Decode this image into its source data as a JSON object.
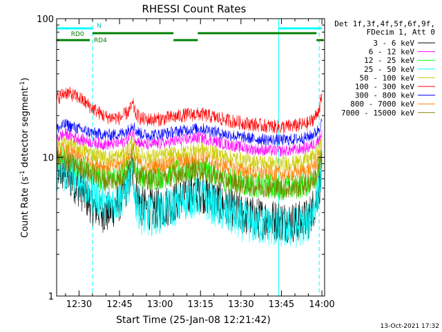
{
  "chart_data": {
    "type": "line",
    "title": "RHESSI Count Rates",
    "xlabel": "Start Time (25-Jan-08 12:21:42)",
    "ylabel": "Count Rate (s",
    "ylabel_sup": "-1",
    "ylabel_rest": " detector segment",
    "ylabel_close": ")",
    "y_scale": "log",
    "ylim": [
      1,
      100
    ],
    "xlim": [
      "12:21:42",
      "14:01:00"
    ],
    "x_ticks": [
      "12:30",
      "12:45",
      "13:00",
      "13:15",
      "13:30",
      "13:45",
      "14:00"
    ],
    "x_tick_minutes": [
      750,
      765,
      780,
      795,
      810,
      825,
      840
    ],
    "y_ticks": [
      "1",
      "10",
      "100"
    ],
    "timestamp": "13-Oct-2021 17:32",
    "legend_header": [
      "Det 1f,3f,4f,5f,6f,9f,",
      "FDecim 1, Att 0"
    ],
    "series": [
      {
        "name": "3 - 6 keV",
        "color": "#000000",
        "x": [
          741.7,
          745,
          750,
          755,
          760,
          765,
          768,
          770,
          771,
          773,
          775,
          780,
          785,
          790,
          795,
          800,
          805,
          810,
          815,
          820,
          825,
          830,
          835,
          838,
          840
        ],
        "y": [
          8.3,
          7.6,
          6.1,
          4.5,
          3.9,
          4.8,
          6.4,
          7.9,
          5.6,
          4.5,
          4.2,
          4.3,
          4.7,
          5.4,
          5.7,
          5.0,
          4.3,
          3.9,
          3.7,
          3.6,
          3.5,
          3.4,
          3.6,
          5.0,
          7.8
        ]
      },
      {
        "name": "6 - 12 keV",
        "color": "#ff00ff",
        "x": [
          741.7,
          745,
          750,
          755,
          760,
          765,
          768,
          770,
          771,
          773,
          775,
          780,
          785,
          790,
          795,
          800,
          805,
          810,
          815,
          820,
          825,
          830,
          835,
          838,
          840
        ],
        "y": [
          13.8,
          14.8,
          13.6,
          12.8,
          12.4,
          12.6,
          13.6,
          15.2,
          13.5,
          12.6,
          12.3,
          12.6,
          13.0,
          13.5,
          13.9,
          13.1,
          12.4,
          11.8,
          11.4,
          11.2,
          11.1,
          11.3,
          11.8,
          12.8,
          15.0
        ]
      },
      {
        "name": "12 - 25 keV",
        "color": "#00ff00",
        "x": [
          741.7,
          745,
          750,
          755,
          760,
          765,
          768,
          770,
          771,
          773,
          775,
          780,
          785,
          790,
          795,
          800,
          805,
          810,
          815,
          820,
          825,
          830,
          835,
          838,
          840
        ],
        "y": [
          10.1,
          9.7,
          8.7,
          7.6,
          6.9,
          7.2,
          8.4,
          10.2,
          8.3,
          7.4,
          7.1,
          7.3,
          7.6,
          8.1,
          8.3,
          7.6,
          6.9,
          6.5,
          6.3,
          6.2,
          6.1,
          6.1,
          6.5,
          7.5,
          10.0
        ]
      },
      {
        "name": "25 - 50 keV",
        "color": "#00ffff",
        "x": [
          741.7,
          745,
          750,
          755,
          760,
          765,
          768,
          770,
          771,
          773,
          775,
          780,
          785,
          790,
          795,
          800,
          805,
          810,
          815,
          820,
          825,
          830,
          835,
          838,
          840
        ],
        "y": [
          8.0,
          7.7,
          6.8,
          5.5,
          4.6,
          4.9,
          6.2,
          7.7,
          4.9,
          3.9,
          3.7,
          4.0,
          4.4,
          5.0,
          5.2,
          4.5,
          3.9,
          3.5,
          3.3,
          3.2,
          3.1,
          3.1,
          3.4,
          4.9,
          8.2
        ]
      },
      {
        "name": "50 - 100 keV",
        "color": "#cccc00",
        "x": [
          741.7,
          745,
          750,
          755,
          760,
          765,
          768,
          770,
          771,
          773,
          775,
          780,
          785,
          790,
          795,
          800,
          805,
          810,
          815,
          820,
          825,
          830,
          835,
          838,
          840
        ],
        "y": [
          12.4,
          12.9,
          11.8,
          10.6,
          10.0,
          10.2,
          11.4,
          13.2,
          11.2,
          10.4,
          10.1,
          10.3,
          10.6,
          11.1,
          11.5,
          10.8,
          10.1,
          9.6,
          9.3,
          9.1,
          9.0,
          9.2,
          9.6,
          10.7,
          13.2
        ]
      },
      {
        "name": "100 - 300 keV",
        "color": "#ff0000",
        "x": [
          741.7,
          745,
          750,
          755,
          760,
          765,
          768,
          770,
          771,
          773,
          775,
          780,
          785,
          790,
          795,
          800,
          805,
          810,
          815,
          820,
          825,
          830,
          835,
          838,
          840
        ],
        "y": [
          26.5,
          29.5,
          27.0,
          22.5,
          19.5,
          19.2,
          21.0,
          24.0,
          20.5,
          19.0,
          18.7,
          18.8,
          19.5,
          20.3,
          20.5,
          19.5,
          18.5,
          17.8,
          17.2,
          16.8,
          16.5,
          16.9,
          17.5,
          20.0,
          26.5
        ]
      },
      {
        "name": "300 - 800 keV",
        "color": "#0000ff",
        "x": [
          741.7,
          745,
          750,
          755,
          760,
          765,
          768,
          770,
          771,
          773,
          775,
          780,
          785,
          790,
          795,
          800,
          805,
          810,
          815,
          820,
          825,
          830,
          835,
          838,
          840
        ],
        "y": [
          16.0,
          17.3,
          16.0,
          15.0,
          14.5,
          14.7,
          15.6,
          17.5,
          15.6,
          14.8,
          14.5,
          14.7,
          15.2,
          15.8,
          16.2,
          15.4,
          14.6,
          14.0,
          13.6,
          13.4,
          13.3,
          13.5,
          14.0,
          15.2,
          17.8
        ]
      },
      {
        "name": "800 - 7000 keV",
        "color": "#ff8000",
        "x": [
          741.7,
          745,
          750,
          755,
          760,
          765,
          768,
          770,
          771,
          773,
          775,
          780,
          785,
          790,
          795,
          800,
          805,
          810,
          815,
          820,
          825,
          830,
          835,
          838,
          840
        ],
        "y": [
          11.3,
          11.2,
          10.2,
          9.2,
          8.6,
          8.8,
          9.9,
          11.6,
          9.7,
          8.9,
          8.6,
          8.8,
          9.1,
          9.6,
          9.9,
          9.2,
          8.6,
          8.1,
          7.8,
          7.7,
          7.6,
          7.7,
          8.1,
          9.2,
          11.6
        ]
      },
      {
        "name": "7000 - 15000 keV",
        "color": "#808000",
        "x": [
          741.7,
          745,
          750,
          755,
          760,
          765,
          768,
          770,
          771,
          773,
          775,
          780,
          785,
          790,
          795,
          800,
          805,
          810,
          815,
          820,
          825,
          830,
          835,
          838,
          840
        ],
        "y": [
          9.6,
          9.4,
          8.5,
          7.5,
          6.8,
          7.0,
          8.1,
          9.8,
          8.0,
          7.2,
          6.9,
          7.1,
          7.4,
          7.9,
          8.1,
          7.4,
          6.8,
          6.4,
          6.2,
          6.1,
          6.0,
          6.0,
          6.4,
          7.4,
          9.7
        ]
      }
    ],
    "flags": [
      {
        "label": "N",
        "color": "#00ffff",
        "segments": [
          [
            "12:21:42",
            "12:35:00"
          ],
          [
            "13:44:00",
            "14:00:00"
          ]
        ]
      },
      {
        "label": "RD0",
        "color": "#008000",
        "segments": [
          [
            "12:35:00",
            "13:05:00"
          ],
          [
            "13:14:00",
            "13:58:00"
          ]
        ]
      },
      {
        "label": "RD4",
        "color": "#008000",
        "segments": [
          [
            "12:21:42",
            "12:34:00"
          ],
          [
            "13:05:00",
            "13:14:00"
          ],
          [
            "13:58:00",
            "14:00:30"
          ]
        ]
      }
    ],
    "markers": [
      {
        "time": "12:35:00",
        "style": "dashed",
        "color": "#00ffff"
      },
      {
        "time": "13:44:00",
        "style": "solid",
        "color": "#00ffff"
      },
      {
        "time": "13:59:00",
        "style": "dashed",
        "color": "#00ffff"
      }
    ],
    "legend_placement": "right",
    "grid": false
  }
}
